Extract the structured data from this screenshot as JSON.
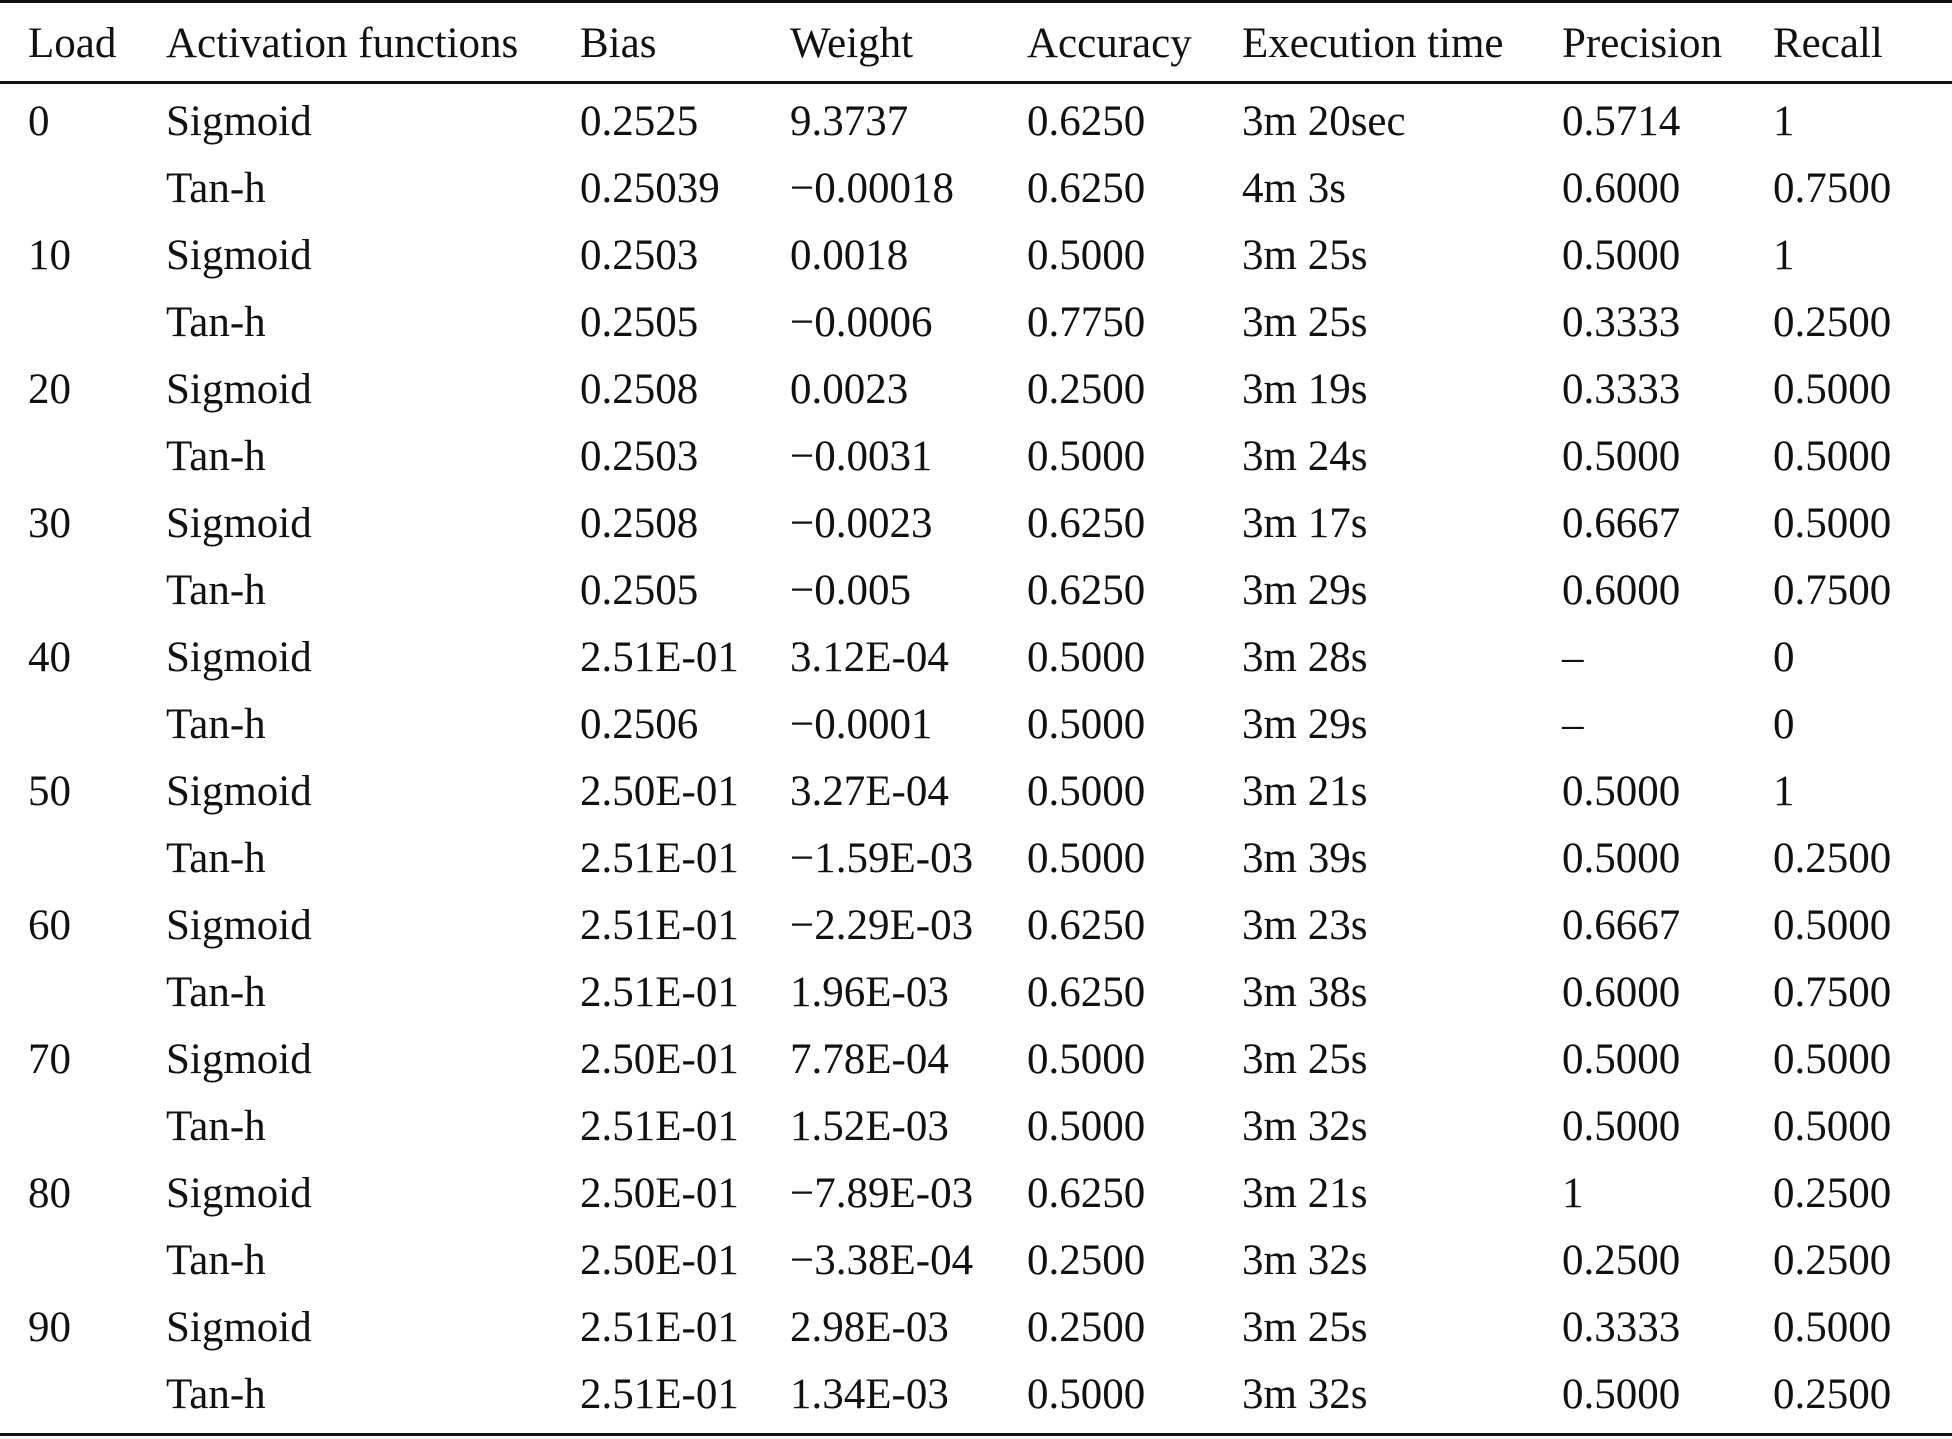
{
  "table": {
    "headers": [
      "Load",
      "Activation functions",
      "Bias",
      "Weight",
      "Accuracy",
      "Execution time",
      "Precision",
      "Recall"
    ],
    "rows": [
      [
        "0",
        "Sigmoid",
        "0.2525",
        "9.3737",
        "0.6250",
        "3m 20sec",
        "0.5714",
        "1"
      ],
      [
        "",
        "Tan-h",
        "0.25039",
        "−0.00018",
        "0.6250",
        "4m 3s",
        "0.6000",
        "0.7500"
      ],
      [
        "10",
        "Sigmoid",
        "0.2503",
        "0.0018",
        "0.5000",
        "3m 25s",
        "0.5000",
        "1"
      ],
      [
        "",
        "Tan-h",
        "0.2505",
        "−0.0006",
        "0.7750",
        "3m 25s",
        "0.3333",
        "0.2500"
      ],
      [
        "20",
        "Sigmoid",
        "0.2508",
        "0.0023",
        "0.2500",
        "3m 19s",
        "0.3333",
        "0.5000"
      ],
      [
        "",
        "Tan-h",
        "0.2503",
        "−0.0031",
        "0.5000",
        "3m 24s",
        "0.5000",
        "0.5000"
      ],
      [
        "30",
        "Sigmoid",
        "0.2508",
        "−0.0023",
        "0.6250",
        "3m 17s",
        "0.6667",
        "0.5000"
      ],
      [
        "",
        "Tan-h",
        "0.2505",
        "−0.005",
        "0.6250",
        "3m 29s",
        "0.6000",
        "0.7500"
      ],
      [
        "40",
        "Sigmoid",
        "2.51E-01",
        "3.12E-04",
        "0.5000",
        "3m 28s",
        "–",
        "0"
      ],
      [
        "",
        "Tan-h",
        "0.2506",
        "−0.0001",
        "0.5000",
        "3m 29s",
        "–",
        "0"
      ],
      [
        "50",
        "Sigmoid",
        "2.50E-01",
        "3.27E-04",
        "0.5000",
        "3m 21s",
        "0.5000",
        "1"
      ],
      [
        "",
        "Tan-h",
        "2.51E-01",
        "−1.59E-03",
        "0.5000",
        "3m 39s",
        "0.5000",
        "0.2500"
      ],
      [
        "60",
        "Sigmoid",
        "2.51E-01",
        "−2.29E-03",
        "0.6250",
        "3m 23s",
        "0.6667",
        "0.5000"
      ],
      [
        "",
        "Tan-h",
        "2.51E-01",
        "1.96E-03",
        "0.6250",
        "3m 38s",
        "0.6000",
        "0.7500"
      ],
      [
        "70",
        "Sigmoid",
        "2.50E-01",
        "7.78E-04",
        "0.5000",
        "3m 25s",
        "0.5000",
        "0.5000"
      ],
      [
        "",
        "Tan-h",
        "2.51E-01",
        "1.52E-03",
        "0.5000",
        "3m 32s",
        "0.5000",
        "0.5000"
      ],
      [
        "80",
        "Sigmoid",
        "2.50E-01",
        "−7.89E-03",
        "0.6250",
        "3m 21s",
        "1",
        "0.2500"
      ],
      [
        "",
        "Tan-h",
        "2.50E-01",
        "−3.38E-04",
        "0.2500",
        "3m 32s",
        "0.2500",
        "0.2500"
      ],
      [
        "90",
        "Sigmoid",
        "2.51E-01",
        "2.98E-03",
        "0.2500",
        "3m 25s",
        "0.3333",
        "0.5000"
      ],
      [
        "",
        "Tan-h",
        "2.51E-01",
        "1.34E-03",
        "0.5000",
        "3m 32s",
        "0.5000",
        "0.2500"
      ]
    ]
  }
}
